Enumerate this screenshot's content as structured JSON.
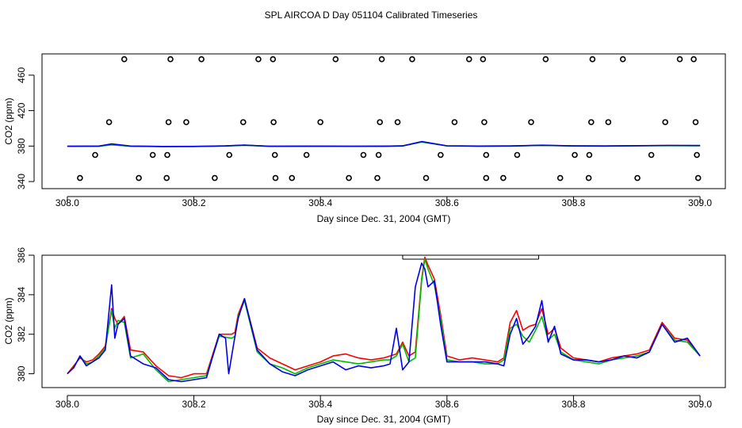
{
  "title": "SPL AIRCOA D  Day 051104  Calibrated Timeseries",
  "chart_data": [
    {
      "type": "scatter",
      "xlabel": "Day since Dec. 31, 2004 (GMT)",
      "ylabel": "CO2 (ppm)",
      "xlim": [
        307.96,
        309.04
      ],
      "ylim": [
        332,
        484
      ],
      "xticks": [
        308.0,
        308.2,
        308.4,
        308.6,
        308.8,
        309.0
      ],
      "xtick_labels": [
        "308.0",
        "308.2",
        "308.4",
        "308.6",
        "308.8",
        "309.0"
      ],
      "yticks": [
        340,
        380,
        420,
        460
      ],
      "ytick_labels": [
        "340",
        "380",
        "420",
        "460"
      ],
      "points": [
        {
          "x": 308.09,
          "y": 478
        },
        {
          "x": 308.163,
          "y": 478
        },
        {
          "x": 308.212,
          "y": 478
        },
        {
          "x": 308.302,
          "y": 478
        },
        {
          "x": 308.325,
          "y": 478
        },
        {
          "x": 308.424,
          "y": 478
        },
        {
          "x": 308.497,
          "y": 478
        },
        {
          "x": 308.545,
          "y": 478
        },
        {
          "x": 308.635,
          "y": 478
        },
        {
          "x": 308.657,
          "y": 478
        },
        {
          "x": 308.756,
          "y": 478
        },
        {
          "x": 308.83,
          "y": 478
        },
        {
          "x": 308.878,
          "y": 478
        },
        {
          "x": 308.968,
          "y": 478
        },
        {
          "x": 308.99,
          "y": 478
        },
        {
          "x": 308.066,
          "y": 407
        },
        {
          "x": 308.16,
          "y": 407
        },
        {
          "x": 308.188,
          "y": 407
        },
        {
          "x": 308.278,
          "y": 407
        },
        {
          "x": 308.326,
          "y": 407
        },
        {
          "x": 308.4,
          "y": 407
        },
        {
          "x": 308.494,
          "y": 407
        },
        {
          "x": 308.522,
          "y": 407
        },
        {
          "x": 308.612,
          "y": 407
        },
        {
          "x": 308.659,
          "y": 407
        },
        {
          "x": 308.733,
          "y": 407
        },
        {
          "x": 308.828,
          "y": 407
        },
        {
          "x": 308.855,
          "y": 407
        },
        {
          "x": 308.945,
          "y": 407
        },
        {
          "x": 308.993,
          "y": 407
        },
        {
          "x": 308.044,
          "y": 370
        },
        {
          "x": 308.135,
          "y": 370
        },
        {
          "x": 308.158,
          "y": 370
        },
        {
          "x": 308.256,
          "y": 370
        },
        {
          "x": 308.328,
          "y": 370
        },
        {
          "x": 308.378,
          "y": 370
        },
        {
          "x": 308.468,
          "y": 370
        },
        {
          "x": 308.492,
          "y": 370
        },
        {
          "x": 308.59,
          "y": 370
        },
        {
          "x": 308.662,
          "y": 370
        },
        {
          "x": 308.711,
          "y": 370
        },
        {
          "x": 308.802,
          "y": 370
        },
        {
          "x": 308.825,
          "y": 370
        },
        {
          "x": 308.923,
          "y": 370
        },
        {
          "x": 308.995,
          "y": 370
        },
        {
          "x": 308.02,
          "y": 344
        },
        {
          "x": 308.113,
          "y": 344
        },
        {
          "x": 308.157,
          "y": 344
        },
        {
          "x": 308.233,
          "y": 344
        },
        {
          "x": 308.329,
          "y": 344
        },
        {
          "x": 308.355,
          "y": 344
        },
        {
          "x": 308.445,
          "y": 344
        },
        {
          "x": 308.49,
          "y": 344
        },
        {
          "x": 308.567,
          "y": 344
        },
        {
          "x": 308.662,
          "y": 344
        },
        {
          "x": 308.689,
          "y": 344
        },
        {
          "x": 308.779,
          "y": 344
        },
        {
          "x": 308.824,
          "y": 344
        },
        {
          "x": 308.901,
          "y": 344
        },
        {
          "x": 308.997,
          "y": 344
        }
      ],
      "series": [
        {
          "name": "red",
          "color": "#ff0000",
          "x": [
            308.0,
            308.05,
            308.07,
            308.1,
            308.15,
            308.2,
            308.25,
            308.28,
            308.32,
            308.4,
            308.45,
            308.5,
            308.53,
            308.56,
            308.6,
            308.65,
            308.7,
            308.75,
            308.8,
            308.85,
            308.9,
            308.95,
            309.0
          ],
          "y": [
            379.8,
            379.9,
            381.5,
            379.9,
            379.6,
            379.7,
            380.2,
            381.0,
            379.8,
            379.9,
            379.8,
            379.9,
            380.2,
            384.8,
            380.3,
            380.0,
            380.1,
            380.8,
            380.2,
            380.1,
            380.4,
            380.6,
            380.5
          ]
        },
        {
          "name": "green",
          "color": "#00bb00",
          "x": [
            308.0,
            308.05,
            308.07,
            308.1,
            308.15,
            308.2,
            308.25,
            308.28,
            308.32,
            308.4,
            308.45,
            308.5,
            308.53,
            308.56,
            308.6,
            308.65,
            308.7,
            308.75,
            308.8,
            308.85,
            308.9,
            308.95,
            309.0
          ],
          "y": [
            379.7,
            379.9,
            381.4,
            379.8,
            379.5,
            379.6,
            380.1,
            380.9,
            379.7,
            379.8,
            379.7,
            379.8,
            380.1,
            384.6,
            380.2,
            379.9,
            380.0,
            380.7,
            380.1,
            380.0,
            380.3,
            380.5,
            380.4
          ]
        },
        {
          "name": "blue",
          "color": "#0000ee",
          "x": [
            308.0,
            308.05,
            308.07,
            308.1,
            308.15,
            308.2,
            308.25,
            308.28,
            308.32,
            308.4,
            308.45,
            308.5,
            308.53,
            308.56,
            308.6,
            308.65,
            308.7,
            308.75,
            308.8,
            308.85,
            308.9,
            308.95,
            309.0
          ],
          "y": [
            379.8,
            380.0,
            382.4,
            380.0,
            379.6,
            379.6,
            380.2,
            381.1,
            379.8,
            379.9,
            379.8,
            379.9,
            380.2,
            385.1,
            380.3,
            380.0,
            380.1,
            381.0,
            380.2,
            380.1,
            380.5,
            380.7,
            380.6
          ]
        }
      ]
    },
    {
      "type": "line",
      "xlabel": "Day since Dec. 31, 2004 (GMT)",
      "ylabel": "CO2 (ppm)",
      "xlim": [
        307.96,
        309.04
      ],
      "ylim": [
        379.3,
        386.0
      ],
      "xticks": [
        308.0,
        308.2,
        308.4,
        308.6,
        308.8,
        309.0
      ],
      "xtick_labels": [
        "308.0",
        "308.2",
        "308.4",
        "308.6",
        "308.8",
        "309.0"
      ],
      "yticks": [
        380,
        382,
        384,
        386
      ],
      "ytick_labels": [
        "380",
        "382",
        "384",
        "386"
      ],
      "annotation": {
        "type": "bracket",
        "x_start": 308.53,
        "x_end": 308.745
      },
      "series": [
        {
          "name": "red",
          "color": "#ff0000",
          "x": [
            308.0,
            308.01,
            308.02,
            308.03,
            308.04,
            308.05,
            308.06,
            308.07,
            308.075,
            308.08,
            308.09,
            308.1,
            308.12,
            308.14,
            308.16,
            308.18,
            308.2,
            308.22,
            308.24,
            308.26,
            308.265,
            308.27,
            308.28,
            308.3,
            308.32,
            308.34,
            308.36,
            308.38,
            308.4,
            308.42,
            308.44,
            308.46,
            308.48,
            308.5,
            308.51,
            308.52,
            308.53,
            308.54,
            308.55,
            308.56,
            308.565,
            308.57,
            308.58,
            308.59,
            308.6,
            308.62,
            308.64,
            308.66,
            308.68,
            308.69,
            308.7,
            308.71,
            308.72,
            308.73,
            308.74,
            308.75,
            308.76,
            308.77,
            308.78,
            308.8,
            308.82,
            308.84,
            308.86,
            308.88,
            308.9,
            308.92,
            308.94,
            308.96,
            308.98,
            309.0
          ],
          "y": [
            380.0,
            380.4,
            380.8,
            380.6,
            380.7,
            381.0,
            381.4,
            383.3,
            382.8,
            382.5,
            382.9,
            381.2,
            381.1,
            380.4,
            379.9,
            379.8,
            380.0,
            380.0,
            382.0,
            382.0,
            382.1,
            383.0,
            383.8,
            381.3,
            380.8,
            380.5,
            380.2,
            380.4,
            380.6,
            380.9,
            381.0,
            380.8,
            380.7,
            380.8,
            380.9,
            381.0,
            381.6,
            380.9,
            381.1,
            384.8,
            385.9,
            385.5,
            384.8,
            383.0,
            380.9,
            380.7,
            380.8,
            380.7,
            380.6,
            380.8,
            382.6,
            383.2,
            382.2,
            382.4,
            382.5,
            383.3,
            382.0,
            382.3,
            381.3,
            380.8,
            380.7,
            380.6,
            380.8,
            380.9,
            381.0,
            381.2,
            382.6,
            381.8,
            381.7,
            380.9
          ]
        },
        {
          "name": "green",
          "color": "#00bb00",
          "x": [
            308.0,
            308.01,
            308.02,
            308.03,
            308.04,
            308.05,
            308.06,
            308.07,
            308.075,
            308.08,
            308.09,
            308.1,
            308.12,
            308.14,
            308.16,
            308.18,
            308.2,
            308.22,
            308.24,
            308.26,
            308.265,
            308.27,
            308.28,
            308.3,
            308.32,
            308.34,
            308.36,
            308.38,
            308.4,
            308.42,
            308.44,
            308.46,
            308.48,
            308.5,
            308.51,
            308.52,
            308.53,
            308.54,
            308.55,
            308.56,
            308.565,
            308.57,
            308.58,
            308.59,
            308.6,
            308.62,
            308.64,
            308.66,
            308.68,
            308.69,
            308.7,
            308.71,
            308.72,
            308.73,
            308.74,
            308.75,
            308.76,
            308.77,
            308.78,
            308.8,
            308.82,
            308.84,
            308.86,
            308.88,
            308.9,
            308.92,
            308.94,
            308.96,
            308.98,
            309.0
          ],
          "y": [
            380.0,
            380.3,
            380.9,
            380.5,
            380.6,
            380.9,
            381.3,
            383.2,
            382.3,
            382.7,
            382.6,
            380.8,
            381.0,
            380.2,
            379.6,
            379.7,
            379.8,
            379.9,
            381.9,
            381.8,
            381.9,
            382.9,
            383.7,
            381.1,
            380.5,
            380.3,
            380.0,
            380.3,
            380.5,
            380.7,
            380.6,
            380.5,
            380.6,
            380.7,
            380.7,
            380.9,
            381.5,
            380.6,
            380.8,
            384.7,
            385.8,
            385.3,
            384.5,
            382.8,
            380.7,
            380.6,
            380.6,
            380.5,
            380.5,
            380.7,
            382.3,
            382.5,
            381.9,
            381.6,
            382.2,
            382.9,
            381.7,
            382.0,
            381.1,
            380.7,
            380.6,
            380.5,
            380.7,
            380.8,
            380.9,
            381.1,
            382.5,
            381.7,
            381.6,
            380.9
          ]
        },
        {
          "name": "blue",
          "color": "#0000ee",
          "x": [
            308.0,
            308.01,
            308.02,
            308.03,
            308.04,
            308.05,
            308.06,
            308.07,
            308.075,
            308.08,
            308.09,
            308.1,
            308.12,
            308.14,
            308.16,
            308.18,
            308.2,
            308.22,
            308.24,
            308.25,
            308.255,
            308.265,
            308.27,
            308.28,
            308.3,
            308.32,
            308.34,
            308.36,
            308.38,
            308.4,
            308.42,
            308.44,
            308.46,
            308.48,
            308.5,
            308.51,
            308.52,
            308.53,
            308.54,
            308.55,
            308.56,
            308.565,
            308.57,
            308.58,
            308.59,
            308.6,
            308.62,
            308.64,
            308.66,
            308.68,
            308.69,
            308.7,
            308.71,
            308.72,
            308.73,
            308.74,
            308.75,
            308.76,
            308.77,
            308.78,
            308.8,
            308.82,
            308.84,
            308.86,
            308.88,
            308.9,
            308.92,
            308.94,
            308.96,
            308.98,
            309.0
          ],
          "y": [
            380.0,
            380.3,
            380.9,
            380.4,
            380.6,
            380.8,
            381.2,
            384.5,
            381.8,
            382.5,
            382.8,
            380.9,
            380.5,
            380.3,
            379.7,
            379.6,
            379.7,
            379.8,
            382.0,
            381.8,
            380.0,
            381.9,
            382.8,
            383.8,
            381.2,
            380.5,
            380.1,
            379.9,
            380.2,
            380.4,
            380.6,
            380.2,
            380.4,
            380.3,
            380.4,
            380.5,
            382.3,
            380.2,
            380.6,
            384.4,
            385.6,
            385.3,
            384.4,
            384.7,
            382.5,
            380.6,
            380.6,
            380.6,
            380.6,
            380.5,
            380.4,
            382.0,
            382.8,
            381.5,
            381.9,
            382.4,
            383.7,
            381.6,
            382.4,
            381.0,
            380.7,
            380.7,
            380.6,
            380.7,
            380.9,
            380.8,
            381.1,
            382.5,
            381.6,
            381.8,
            380.9
          ]
        }
      ]
    }
  ]
}
